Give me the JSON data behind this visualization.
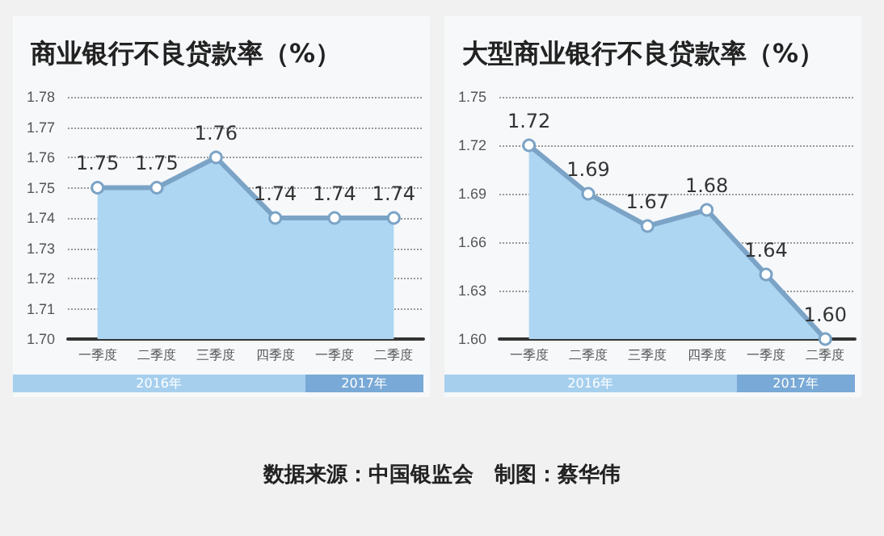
{
  "chart_data": [
    {
      "type": "area",
      "title": "商业银行不良贷款率（%）",
      "categories": [
        "一季度",
        "二季度",
        "三季度",
        "四季度",
        "一季度",
        "二季度"
      ],
      "series": [
        {
          "color": "#7ba3c6",
          "values": [
            1.75,
            1.75,
            1.76,
            1.74,
            1.74,
            1.74
          ]
        }
      ],
      "ylim": [
        1.7,
        1.78
      ],
      "yticks": [
        {
          "value": 1.7,
          "label": "1.70"
        },
        1.71,
        1.72,
        1.73,
        1.74,
        1.75,
        1.76,
        1.77,
        1.78
      ],
      "grid": "y",
      "marker": "circle",
      "data_labels": true,
      "annotations": [
        "2016年",
        "2017年"
      ]
    },
    {
      "type": "area",
      "title": "大型商业银行不良贷款率（%）",
      "categories": [
        "一季度",
        "二季度",
        "三季度",
        "四季度",
        "一季度",
        "二季度"
      ],
      "series": [
        {
          "color": "#7ba3c6",
          "values": [
            1.72,
            1.69,
            1.67,
            1.68,
            1.64,
            1.6
          ],
          "value_labels": [
            "1.72",
            "1.69",
            "1.67",
            "1.68",
            "1.64",
            "1.60"
          ]
        }
      ],
      "ylim": [
        1.6,
        1.75
      ],
      "yticks": [
        {
          "value": 1.6,
          "label": "1.60"
        },
        1.63,
        1.66,
        1.69,
        1.72,
        1.75
      ],
      "grid": "y",
      "marker": "circle",
      "annotations": [
        "2016年",
        "2017年",
        "数据来源：中国银监会　制图：蔡华伟"
      ]
    }
  ]
}
